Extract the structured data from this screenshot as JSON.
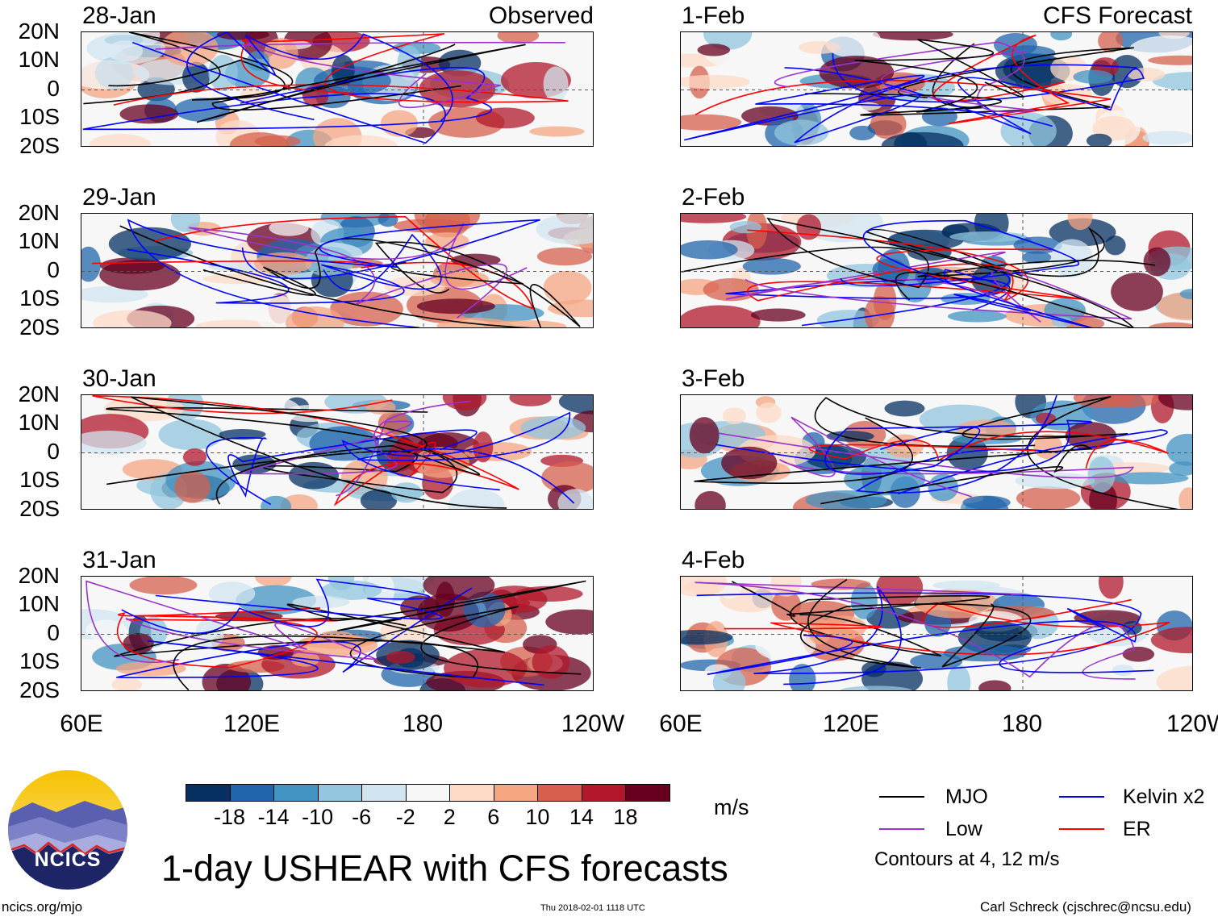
{
  "panels_left": {
    "corner_label": "Observed",
    "dates": [
      "28-Jan",
      "29-Jan",
      "30-Jan",
      "31-Jan"
    ]
  },
  "panels_right": {
    "corner_label": "CFS Forecast",
    "dates": [
      "1-Feb",
      "2-Feb",
      "3-Feb",
      "4-Feb"
    ]
  },
  "latitude_labels": [
    "20N",
    "10N",
    "0",
    "10S",
    "20S"
  ],
  "longitude_labels": [
    "60E",
    "120E",
    "180",
    "120W"
  ],
  "colorbar": {
    "ticks": [
      "-18",
      "-14",
      "-10",
      "-6",
      "-2",
      "2",
      "6",
      "10",
      "14",
      "18"
    ],
    "colors": [
      "#053061",
      "#2166ac",
      "#4393c3",
      "#92c5de",
      "#d1e5f0",
      "#f7f7f7",
      "#fddbc7",
      "#f4a582",
      "#d6604d",
      "#b2182b",
      "#67001f"
    ],
    "units": "m/s"
  },
  "legend": {
    "items": [
      {
        "label": "MJO",
        "color": "#000000"
      },
      {
        "label": "Kelvin x2",
        "color": "#0000ff"
      },
      {
        "label": "Low",
        "color": "#9933cc"
      },
      {
        "label": "ER",
        "color": "#ff0000"
      }
    ],
    "contour_note": "Contours at 4, 12 m/s"
  },
  "logo": {
    "text": "NCICS"
  },
  "title": "1-day USHEAR with CFS forecasts",
  "footer": {
    "website": "ncics.org/mjo",
    "timestamp": "Thu 2018-02-01 1118 UTC",
    "author": "Carl Schreck (cjschrec@ncsu.edu)"
  }
}
